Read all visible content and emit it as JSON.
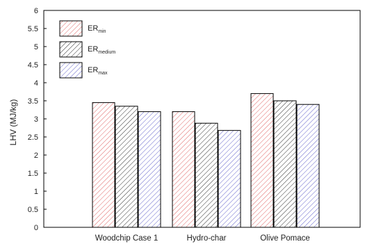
{
  "chart_data": {
    "type": "bar",
    "categories": [
      "Woodchip Case 1",
      "Hydro-char",
      "Olive Pomace"
    ],
    "series": [
      {
        "name": "ER",
        "subscript": "min",
        "values": [
          3.45,
          3.2,
          3.7
        ],
        "color": "#e06666"
      },
      {
        "name": "ER",
        "subscript": "medium",
        "values": [
          3.35,
          2.88,
          3.5
        ],
        "color": "#333333"
      },
      {
        "name": "ER",
        "subscript": "max",
        "values": [
          3.2,
          2.68,
          3.4
        ],
        "color": "#6666cc"
      }
    ],
    "ylabel": "LHV (MJ/kg)",
    "xlabel": "",
    "ylim": [
      0,
      6
    ],
    "yticks": [
      "0",
      "0.5",
      "1",
      "1.5",
      "2",
      "2.5",
      "3",
      "3.5",
      "4",
      "4.5",
      "5",
      "5.5",
      "6"
    ],
    "legend_position": "top-left",
    "grid": false
  }
}
